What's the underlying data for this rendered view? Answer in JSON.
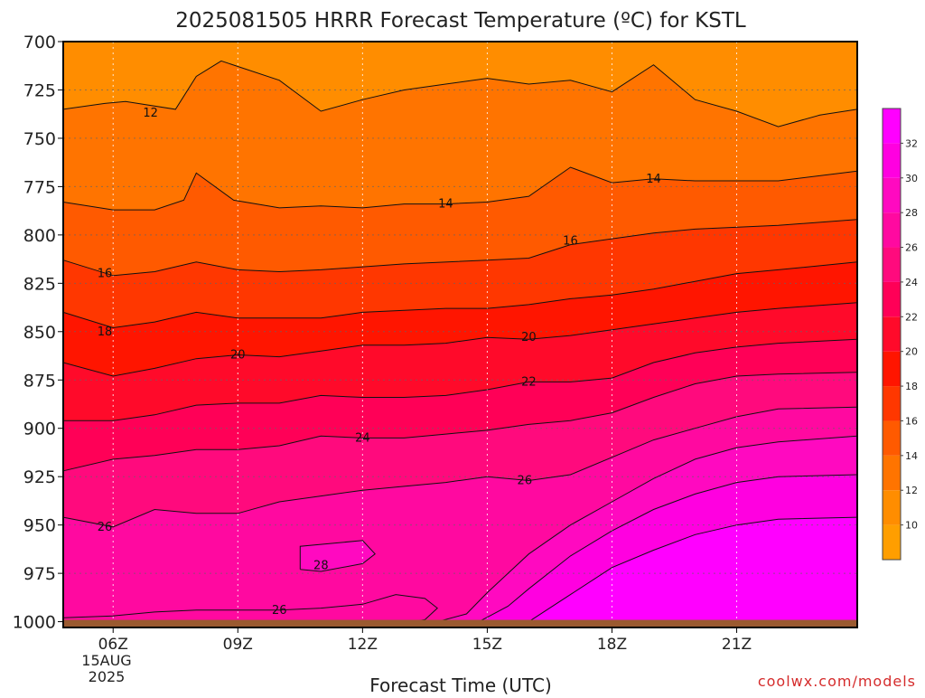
{
  "chart_data": {
    "type": "heatmap",
    "title": "2025081505 HRRR Forecast Temperature (ºC) for KSTL",
    "xlabel": "Forecast Time (UTC)",
    "ylabel": "",
    "watermark": "coolwx.com/models",
    "x_date_label": [
      "15AUG",
      "2025"
    ],
    "x_range_hours": [
      4.8,
      23.9
    ],
    "y_range_hpa": [
      700,
      1003
    ],
    "x_ticks": [
      {
        "hour": 6,
        "label": "06Z"
      },
      {
        "hour": 9,
        "label": "09Z"
      },
      {
        "hour": 12,
        "label": "12Z"
      },
      {
        "hour": 15,
        "label": "15Z"
      },
      {
        "hour": 18,
        "label": "18Z"
      },
      {
        "hour": 21,
        "label": "21Z"
      }
    ],
    "y_ticks": [
      700,
      725,
      750,
      775,
      800,
      825,
      850,
      875,
      900,
      925,
      950,
      975,
      1000
    ],
    "grid": true,
    "surface_color": "#9b5a30",
    "colorbar": {
      "placement": "right",
      "min": 8,
      "max": 34,
      "levels": [
        10,
        12,
        14,
        16,
        18,
        20,
        22,
        24,
        26,
        28,
        30,
        32
      ],
      "band_colors": [
        {
          "from": 8,
          "to": 10,
          "color": "#ff9e00"
        },
        {
          "from": 10,
          "to": 12,
          "color": "#ff8d00"
        },
        {
          "from": 12,
          "to": 14,
          "color": "#ff7400"
        },
        {
          "from": 14,
          "to": 16,
          "color": "#ff5a00"
        },
        {
          "from": 16,
          "to": 18,
          "color": "#ff3700"
        },
        {
          "from": 18,
          "to": 20,
          "color": "#ff1500"
        },
        {
          "from": 20,
          "to": 22,
          "color": "#ff0a2a"
        },
        {
          "from": 22,
          "to": 24,
          "color": "#ff0057"
        },
        {
          "from": 24,
          "to": 26,
          "color": "#ff0a7d"
        },
        {
          "from": 26,
          "to": 28,
          "color": "#ff09a0"
        },
        {
          "from": 28,
          "to": 30,
          "color": "#ff09c0"
        },
        {
          "from": 30,
          "to": 32,
          "color": "#ff00e0"
        },
        {
          "from": 32,
          "to": 34,
          "color": "#ff00ff"
        }
      ]
    },
    "contours": [
      {
        "temp": 12,
        "points": [
          [
            4.8,
            735
          ],
          [
            5.8,
            732
          ],
          [
            6.3,
            731
          ],
          [
            7.5,
            735
          ],
          [
            8.0,
            718
          ],
          [
            8.6,
            710
          ],
          [
            10.0,
            720
          ],
          [
            11.0,
            736
          ],
          [
            12.0,
            730
          ],
          [
            13.0,
            725
          ],
          [
            14.0,
            722
          ],
          [
            15.0,
            719
          ],
          [
            16.0,
            722
          ],
          [
            17.0,
            720
          ],
          [
            18.0,
            726
          ],
          [
            19.0,
            712
          ],
          [
            20.0,
            730
          ],
          [
            21.0,
            736
          ],
          [
            22.0,
            744
          ],
          [
            23.0,
            738
          ],
          [
            23.9,
            735
          ]
        ]
      },
      {
        "temp": 14,
        "points": [
          [
            4.8,
            783
          ],
          [
            6.0,
            787
          ],
          [
            7.0,
            787
          ],
          [
            7.7,
            782
          ],
          [
            8.0,
            768
          ],
          [
            8.9,
            782
          ],
          [
            10.0,
            786
          ],
          [
            11.0,
            785
          ],
          [
            12.0,
            786
          ],
          [
            13.0,
            784
          ],
          [
            14.0,
            784
          ],
          [
            15.0,
            783
          ],
          [
            16.0,
            780
          ],
          [
            17.0,
            765
          ],
          [
            18.0,
            773
          ],
          [
            19.0,
            771
          ],
          [
            20.0,
            772
          ],
          [
            22.0,
            772
          ],
          [
            23.9,
            767
          ]
        ]
      },
      {
        "temp": 16,
        "points": [
          [
            4.8,
            813
          ],
          [
            6.0,
            821
          ],
          [
            7.0,
            819
          ],
          [
            8.0,
            814
          ],
          [
            9.0,
            818
          ],
          [
            10.0,
            819
          ],
          [
            11.0,
            818
          ],
          [
            13.0,
            815
          ],
          [
            15.0,
            813
          ],
          [
            16.0,
            812
          ],
          [
            17.0,
            805
          ],
          [
            18.0,
            802
          ],
          [
            19.0,
            799
          ],
          [
            20.0,
            797
          ],
          [
            22.0,
            795
          ],
          [
            23.9,
            792
          ]
        ]
      },
      {
        "temp": 18,
        "points": [
          [
            4.8,
            840
          ],
          [
            6.0,
            848
          ],
          [
            7.0,
            845
          ],
          [
            8.0,
            840
          ],
          [
            9.0,
            843
          ],
          [
            10.0,
            843
          ],
          [
            11.0,
            843
          ],
          [
            12.0,
            840
          ],
          [
            13.0,
            839
          ],
          [
            14.0,
            838
          ],
          [
            15.0,
            838
          ],
          [
            16.0,
            836
          ],
          [
            17.0,
            833
          ],
          [
            18.0,
            831
          ],
          [
            19.0,
            828
          ],
          [
            20.0,
            824
          ],
          [
            21.0,
            820
          ],
          [
            22.0,
            818
          ],
          [
            23.9,
            814
          ]
        ]
      },
      {
        "temp": 20,
        "points": [
          [
            4.8,
            866
          ],
          [
            6.0,
            873
          ],
          [
            7.0,
            869
          ],
          [
            8.0,
            864
          ],
          [
            9.0,
            862
          ],
          [
            10.0,
            863
          ],
          [
            11.0,
            860
          ],
          [
            12.0,
            857
          ],
          [
            13.0,
            857
          ],
          [
            14.0,
            856
          ],
          [
            15.0,
            853
          ],
          [
            16.0,
            854
          ],
          [
            17.0,
            852
          ],
          [
            18.0,
            849
          ],
          [
            19.0,
            846
          ],
          [
            20.0,
            843
          ],
          [
            21.0,
            840
          ],
          [
            22.0,
            838
          ],
          [
            23.9,
            835
          ]
        ]
      },
      {
        "temp": 22,
        "points": [
          [
            4.8,
            896
          ],
          [
            6.0,
            896
          ],
          [
            7.0,
            893
          ],
          [
            8.0,
            888
          ],
          [
            9.0,
            887
          ],
          [
            10.0,
            887
          ],
          [
            11.0,
            883
          ],
          [
            12.0,
            884
          ],
          [
            13.0,
            884
          ],
          [
            14.0,
            883
          ],
          [
            15.0,
            880
          ],
          [
            16.0,
            876
          ],
          [
            17.0,
            876
          ],
          [
            18.0,
            874
          ],
          [
            19.0,
            866
          ],
          [
            20.0,
            861
          ],
          [
            21.0,
            858
          ],
          [
            22.0,
            856
          ],
          [
            23.9,
            854
          ]
        ]
      },
      {
        "temp": 24,
        "points": [
          [
            4.8,
            922
          ],
          [
            6.0,
            916
          ],
          [
            7.0,
            914
          ],
          [
            8.0,
            911
          ],
          [
            9.0,
            911
          ],
          [
            10.0,
            909
          ],
          [
            11.0,
            904
          ],
          [
            12.0,
            905
          ],
          [
            13.0,
            905
          ],
          [
            14.0,
            903
          ],
          [
            15.0,
            901
          ],
          [
            16.0,
            898
          ],
          [
            17.0,
            896
          ],
          [
            18.0,
            892
          ],
          [
            19.0,
            884
          ],
          [
            20.0,
            877
          ],
          [
            21.0,
            873
          ],
          [
            22.0,
            872
          ],
          [
            23.9,
            871
          ]
        ]
      },
      {
        "temp": 26,
        "points": [
          [
            4.8,
            946
          ],
          [
            6.0,
            951
          ],
          [
            7.0,
            942
          ],
          [
            8.0,
            944
          ],
          [
            9.0,
            944
          ],
          [
            10.0,
            938
          ],
          [
            11.0,
            935
          ],
          [
            12.0,
            932
          ],
          [
            13.0,
            930
          ],
          [
            14.0,
            928
          ],
          [
            15.0,
            925
          ],
          [
            16.0,
            927
          ],
          [
            17.0,
            924
          ],
          [
            18.0,
            915
          ],
          [
            19.0,
            906
          ],
          [
            20.0,
            900
          ],
          [
            21.0,
            894
          ],
          [
            22.0,
            890
          ],
          [
            23.9,
            889
          ]
        ]
      },
      {
        "temp": 26,
        "points": [
          [
            4.8,
            998
          ],
          [
            6.0,
            997
          ],
          [
            7.0,
            995
          ],
          [
            8.0,
            994
          ],
          [
            9.0,
            994
          ],
          [
            10.0,
            994
          ],
          [
            11.0,
            993
          ],
          [
            12.0,
            991
          ],
          [
            12.8,
            986
          ],
          [
            13.5,
            988
          ],
          [
            13.8,
            993
          ],
          [
            13.5,
            999
          ],
          [
            13.2,
            1000
          ]
        ]
      },
      {
        "temp": 28,
        "points": [
          [
            13.8,
            1000
          ],
          [
            14.5,
            996
          ],
          [
            15.0,
            985
          ],
          [
            16.0,
            965
          ],
          [
            17.0,
            950
          ],
          [
            18.0,
            938
          ],
          [
            19.0,
            926
          ],
          [
            20.0,
            916
          ],
          [
            21.0,
            910
          ],
          [
            22.0,
            907
          ],
          [
            23.9,
            904
          ]
        ]
      },
      {
        "temp": 28,
        "points": [
          [
            10.5,
            973
          ],
          [
            10.5,
            961
          ],
          [
            12.0,
            958
          ],
          [
            12.3,
            965
          ],
          [
            12.0,
            970
          ],
          [
            11.0,
            974
          ],
          [
            10.5,
            973
          ]
        ]
      },
      {
        "temp": 30,
        "points": [
          [
            14.8,
            1000
          ],
          [
            15.5,
            992
          ],
          [
            16.0,
            983
          ],
          [
            17.0,
            966
          ],
          [
            18.0,
            953
          ],
          [
            19.0,
            942
          ],
          [
            20.0,
            934
          ],
          [
            21.0,
            928
          ],
          [
            22.0,
            925
          ],
          [
            23.9,
            924
          ]
        ]
      },
      {
        "temp": 32,
        "points": [
          [
            16.0,
            1000
          ],
          [
            17.0,
            986
          ],
          [
            18.0,
            972
          ],
          [
            19.0,
            963
          ],
          [
            20.0,
            955
          ],
          [
            21.0,
            950
          ],
          [
            22.0,
            947
          ],
          [
            23.9,
            946
          ]
        ]
      }
    ],
    "contour_labels": [
      {
        "text": "12",
        "hour": 6.9,
        "p": 737
      },
      {
        "text": "14",
        "hour": 14.0,
        "p": 784
      },
      {
        "text": "14",
        "hour": 19.0,
        "p": 771
      },
      {
        "text": "16",
        "hour": 5.8,
        "p": 820
      },
      {
        "text": "16",
        "hour": 17.0,
        "p": 803
      },
      {
        "text": "18",
        "hour": 5.8,
        "p": 850
      },
      {
        "text": "20",
        "hour": 9.0,
        "p": 862
      },
      {
        "text": "20",
        "hour": 16.0,
        "p": 853
      },
      {
        "text": "22",
        "hour": 16.0,
        "p": 876
      },
      {
        "text": "24",
        "hour": 12.0,
        "p": 905
      },
      {
        "text": "26",
        "hour": 15.9,
        "p": 927
      },
      {
        "text": "26",
        "hour": 5.8,
        "p": 951
      },
      {
        "text": "26",
        "hour": 10.0,
        "p": 994
      },
      {
        "text": "28",
        "hour": 11.0,
        "p": 971
      }
    ]
  }
}
